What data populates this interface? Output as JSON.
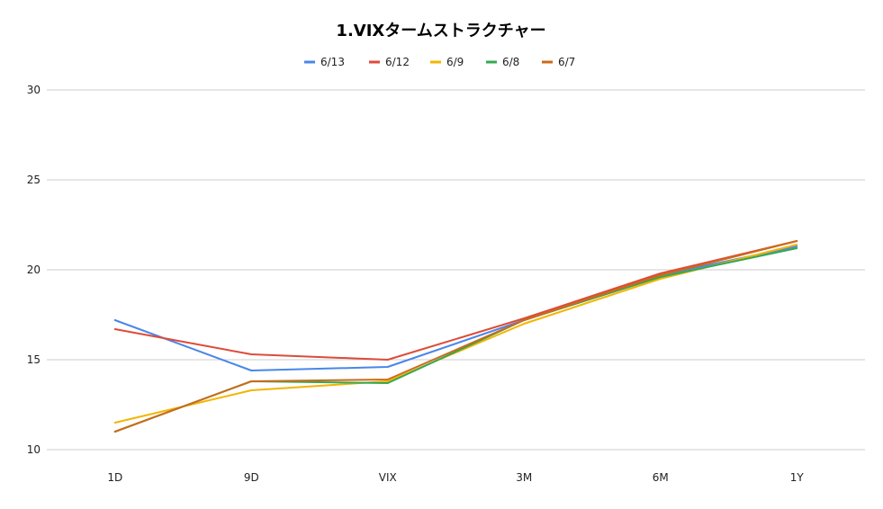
{
  "chart_data": {
    "type": "line",
    "title": "1.VIXタームストラクチャー",
    "xlabel": "",
    "ylabel": "",
    "categories": [
      "1D",
      "9D",
      "VIX",
      "3M",
      "6M",
      "1Y"
    ],
    "ylim": [
      10,
      30
    ],
    "yticks": [
      10,
      15,
      20,
      25,
      30
    ],
    "grid": true,
    "legend_position": "top",
    "series": [
      {
        "name": "6/13",
        "color": "#4a86e8",
        "values": [
          17.2,
          14.4,
          14.6,
          17.2,
          19.7,
          21.3
        ]
      },
      {
        "name": "6/12",
        "color": "#dd4b39",
        "values": [
          16.7,
          15.3,
          15.0,
          17.3,
          19.8,
          21.6
        ]
      },
      {
        "name": "6/9",
        "color": "#f4b400",
        "values": [
          11.5,
          13.3,
          13.8,
          17.0,
          19.5,
          21.4
        ]
      },
      {
        "name": "6/8",
        "color": "#34a853",
        "values": [
          11.0,
          13.8,
          13.7,
          17.2,
          19.6,
          21.2
        ]
      },
      {
        "name": "6/7",
        "color": "#cc6a1a",
        "values": [
          11.0,
          13.8,
          13.9,
          17.2,
          19.7,
          21.6
        ]
      }
    ]
  }
}
